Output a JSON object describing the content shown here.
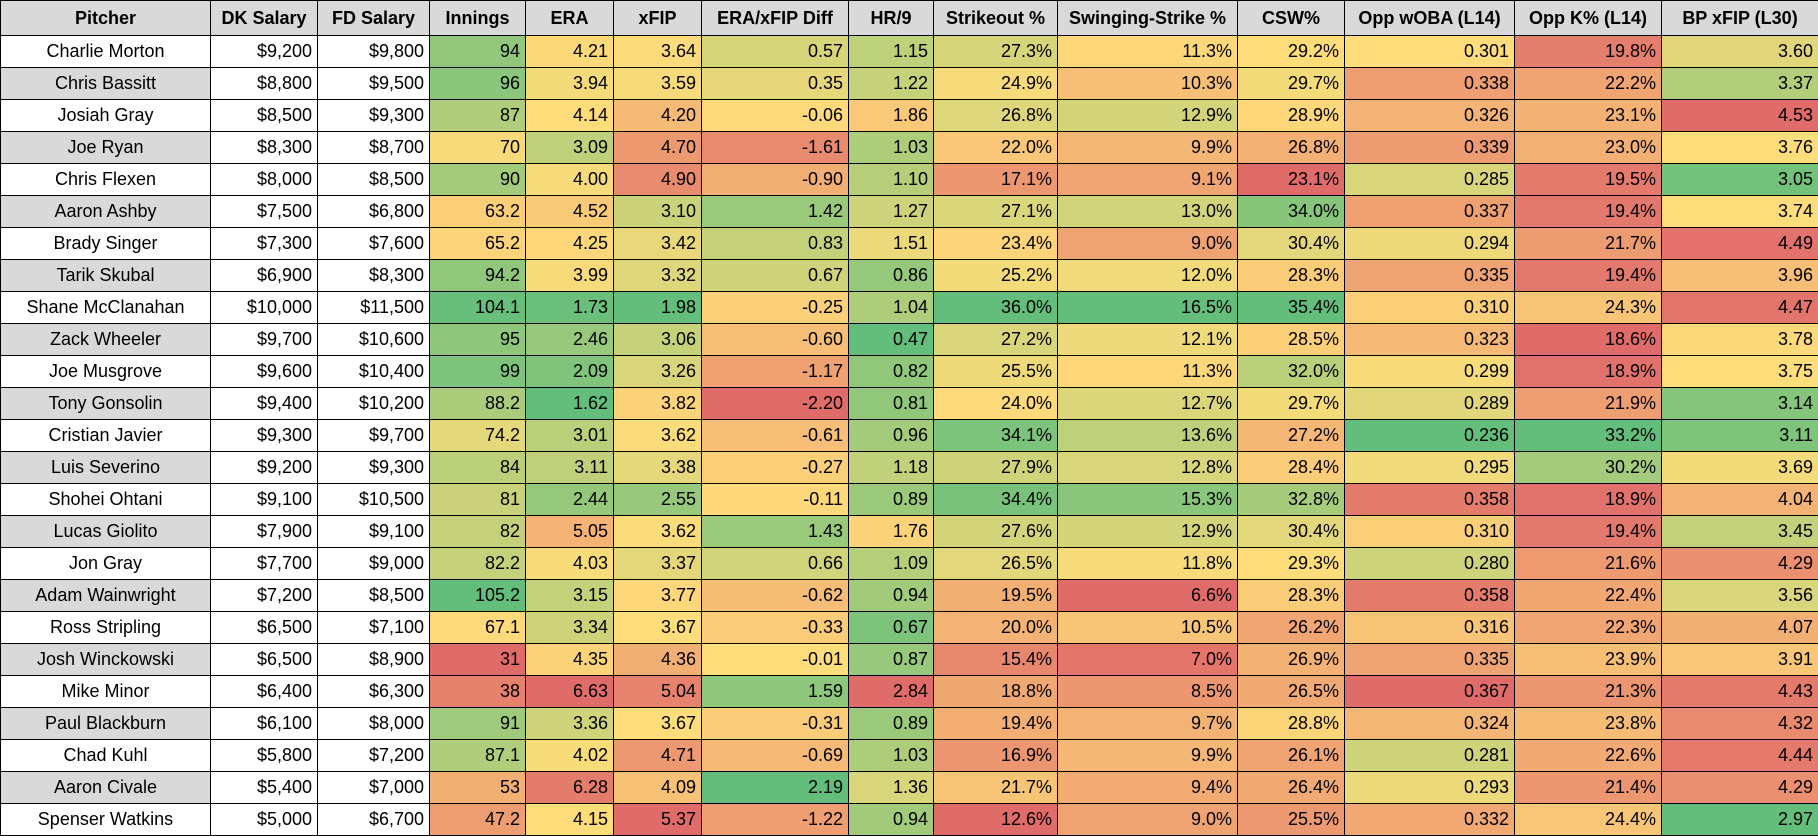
{
  "columns": [
    "Pitcher",
    "DK Salary",
    "FD Salary",
    "Innings",
    "ERA",
    "xFIP",
    "ERA/xFIP Diff",
    "HR/9",
    "Strikeout %",
    "Swinging-Strike %",
    "CSW%",
    "Opp wOBA (L14)",
    "Opp K% (L14)",
    "BP xFIP (L30)"
  ],
  "rows": [
    [
      "Charlie Morton",
      "$9,200",
      "$9,800",
      "94",
      "4.21",
      "3.64",
      "0.57",
      "1.15",
      "27.3%",
      "11.3%",
      "29.2%",
      "0.301",
      "19.8%",
      "3.60"
    ],
    [
      "Chris Bassitt",
      "$8,800",
      "$9,500",
      "96",
      "3.94",
      "3.59",
      "0.35",
      "1.22",
      "24.9%",
      "10.3%",
      "29.7%",
      "0.338",
      "22.2%",
      "3.37"
    ],
    [
      "Josiah Gray",
      "$8,500",
      "$9,300",
      "87",
      "4.14",
      "4.20",
      "-0.06",
      "1.86",
      "26.8%",
      "12.9%",
      "28.9%",
      "0.326",
      "23.1%",
      "4.53"
    ],
    [
      "Joe Ryan",
      "$8,300",
      "$8,700",
      "70",
      "3.09",
      "4.70",
      "-1.61",
      "1.03",
      "22.0%",
      "9.9%",
      "26.8%",
      "0.339",
      "23.0%",
      "3.76"
    ],
    [
      "Chris Flexen",
      "$8,000",
      "$8,500",
      "90",
      "4.00",
      "4.90",
      "-0.90",
      "1.10",
      "17.1%",
      "9.1%",
      "23.1%",
      "0.285",
      "19.5%",
      "3.05"
    ],
    [
      "Aaron Ashby",
      "$7,500",
      "$6,800",
      "63.2",
      "4.52",
      "3.10",
      "1.42",
      "1.27",
      "27.1%",
      "13.0%",
      "34.0%",
      "0.337",
      "19.4%",
      "3.74"
    ],
    [
      "Brady Singer",
      "$7,300",
      "$7,600",
      "65.2",
      "4.25",
      "3.42",
      "0.83",
      "1.51",
      "23.4%",
      "9.0%",
      "30.4%",
      "0.294",
      "21.7%",
      "4.49"
    ],
    [
      "Tarik Skubal",
      "$6,900",
      "$8,300",
      "94.2",
      "3.99",
      "3.32",
      "0.67",
      "0.86",
      "25.2%",
      "12.0%",
      "28.3%",
      "0.335",
      "19.4%",
      "3.96"
    ],
    [
      "Shane McClanahan",
      "$10,000",
      "$11,500",
      "104.1",
      "1.73",
      "1.98",
      "-0.25",
      "1.04",
      "36.0%",
      "16.5%",
      "35.4%",
      "0.310",
      "24.3%",
      "4.47"
    ],
    [
      "Zack Wheeler",
      "$9,700",
      "$10,600",
      "95",
      "2.46",
      "3.06",
      "-0.60",
      "0.47",
      "27.2%",
      "12.1%",
      "28.5%",
      "0.323",
      "18.6%",
      "3.78"
    ],
    [
      "Joe Musgrove",
      "$9,600",
      "$10,400",
      "99",
      "2.09",
      "3.26",
      "-1.17",
      "0.82",
      "25.5%",
      "11.3%",
      "32.0%",
      "0.299",
      "18.9%",
      "3.75"
    ],
    [
      "Tony Gonsolin",
      "$9,400",
      "$10,200",
      "88.2",
      "1.62",
      "3.82",
      "-2.20",
      "0.81",
      "24.0%",
      "12.7%",
      "29.7%",
      "0.289",
      "21.9%",
      "3.14"
    ],
    [
      "Cristian Javier",
      "$9,300",
      "$9,700",
      "74.2",
      "3.01",
      "3.62",
      "-0.61",
      "0.96",
      "34.1%",
      "13.6%",
      "27.2%",
      "0.236",
      "33.2%",
      "3.11"
    ],
    [
      "Luis Severino",
      "$9,200",
      "$9,300",
      "84",
      "3.11",
      "3.38",
      "-0.27",
      "1.18",
      "27.9%",
      "12.8%",
      "28.4%",
      "0.295",
      "30.2%",
      "3.69"
    ],
    [
      "Shohei Ohtani",
      "$9,100",
      "$10,500",
      "81",
      "2.44",
      "2.55",
      "-0.11",
      "0.89",
      "34.4%",
      "15.3%",
      "32.8%",
      "0.358",
      "18.9%",
      "4.04"
    ],
    [
      "Lucas Giolito",
      "$7,900",
      "$9,100",
      "82",
      "5.05",
      "3.62",
      "1.43",
      "1.76",
      "27.6%",
      "12.9%",
      "30.4%",
      "0.310",
      "19.4%",
      "3.45"
    ],
    [
      "Jon Gray",
      "$7,700",
      "$9,000",
      "82.2",
      "4.03",
      "3.37",
      "0.66",
      "1.09",
      "26.5%",
      "11.8%",
      "29.3%",
      "0.280",
      "21.6%",
      "4.29"
    ],
    [
      "Adam Wainwright",
      "$7,200",
      "$8,500",
      "105.2",
      "3.15",
      "3.77",
      "-0.62",
      "0.94",
      "19.5%",
      "6.6%",
      "28.3%",
      "0.358",
      "22.4%",
      "3.56"
    ],
    [
      "Ross Stripling",
      "$6,500",
      "$7,100",
      "67.1",
      "3.34",
      "3.67",
      "-0.33",
      "0.67",
      "20.0%",
      "10.5%",
      "26.2%",
      "0.316",
      "22.3%",
      "4.07"
    ],
    [
      "Josh Winckowski",
      "$6,500",
      "$8,900",
      "31",
      "4.35",
      "4.36",
      "-0.01",
      "0.87",
      "15.4%",
      "7.0%",
      "26.9%",
      "0.335",
      "23.9%",
      "3.91"
    ],
    [
      "Mike Minor",
      "$6,400",
      "$6,300",
      "38",
      "6.63",
      "5.04",
      "1.59",
      "2.84",
      "18.8%",
      "8.5%",
      "26.5%",
      "0.367",
      "21.3%",
      "4.43"
    ],
    [
      "Paul Blackburn",
      "$6,100",
      "$8,000",
      "91",
      "3.36",
      "3.67",
      "-0.31",
      "0.89",
      "19.4%",
      "9.7%",
      "28.8%",
      "0.324",
      "23.8%",
      "4.32"
    ],
    [
      "Chad Kuhl",
      "$5,800",
      "$7,200",
      "87.1",
      "4.02",
      "4.71",
      "-0.69",
      "1.03",
      "16.9%",
      "9.9%",
      "26.1%",
      "0.281",
      "22.6%",
      "4.44"
    ],
    [
      "Aaron Civale",
      "$5,400",
      "$7,000",
      "53",
      "6.28",
      "4.09",
      "2.19",
      "1.36",
      "21.7%",
      "9.4%",
      "26.4%",
      "0.293",
      "21.4%",
      "4.29"
    ],
    [
      "Spenser Watkins",
      "$5,000",
      "$6,700",
      "47.2",
      "4.15",
      "5.37",
      "-1.22",
      "0.94",
      "12.6%",
      "9.0%",
      "25.5%",
      "0.332",
      "24.4%",
      "2.97"
    ]
  ],
  "heat_colors": {
    "good": "#63be7b",
    "mid": "#ffdd7a",
    "bad": "#e06c6a"
  },
  "heat_direction": [
    0,
    0,
    0,
    1,
    -1,
    -1,
    1,
    -1,
    1,
    1,
    1,
    -1,
    1,
    -1
  ]
}
